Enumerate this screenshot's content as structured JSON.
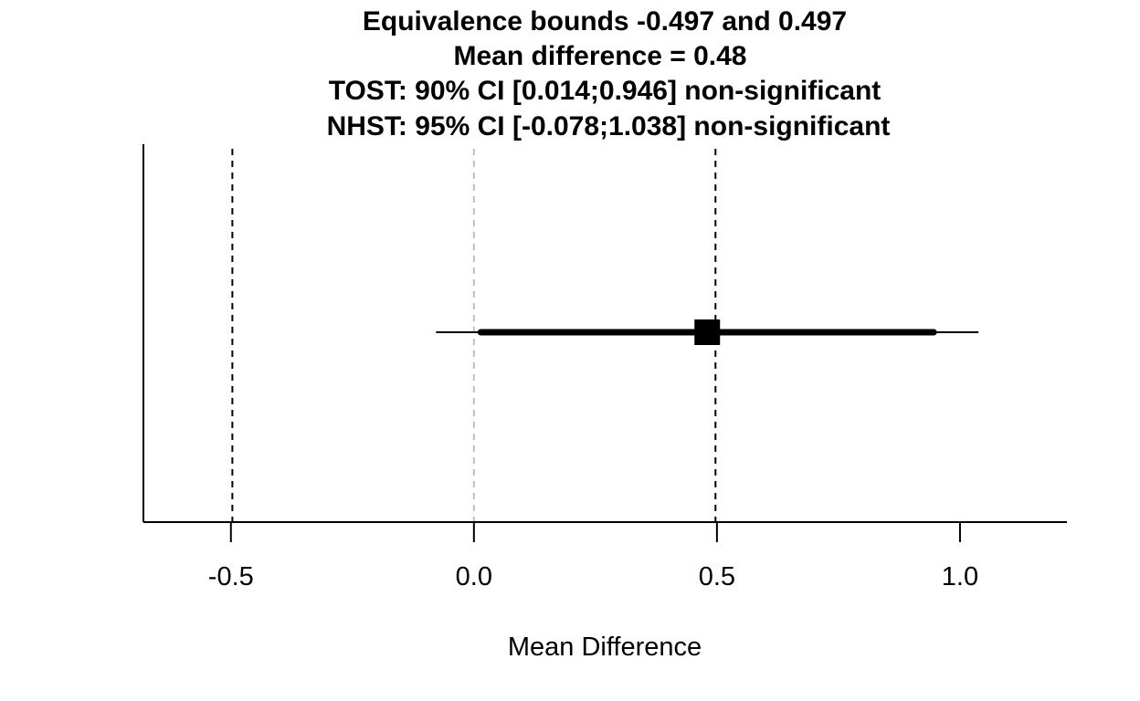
{
  "chart_data": {
    "type": "scatter",
    "title_lines": [
      "Equivalence bounds -0.497 and 0.497",
      "Mean difference = 0.48",
      "TOST: 90% CI [0.014;0.946] non-significant",
      "NHST: 95% CI [-0.078;1.038] non-significant"
    ],
    "xlabel": "Mean Difference",
    "ylabel": "",
    "xlim": [
      -0.68,
      1.22
    ],
    "x_ticks": [
      -0.5,
      0.0,
      0.5,
      1.0
    ],
    "x_tick_labels": [
      "-0.5",
      "0.0",
      "0.5",
      "1.0"
    ],
    "mean_difference": 0.48,
    "equivalence_bounds": [
      -0.497,
      0.497
    ],
    "zero_line": 0.0,
    "ci_90": [
      0.014,
      0.946
    ],
    "ci_95": [
      -0.078,
      1.038
    ],
    "colors": {
      "line": "#000000",
      "zero_line": "#bebebe"
    }
  }
}
